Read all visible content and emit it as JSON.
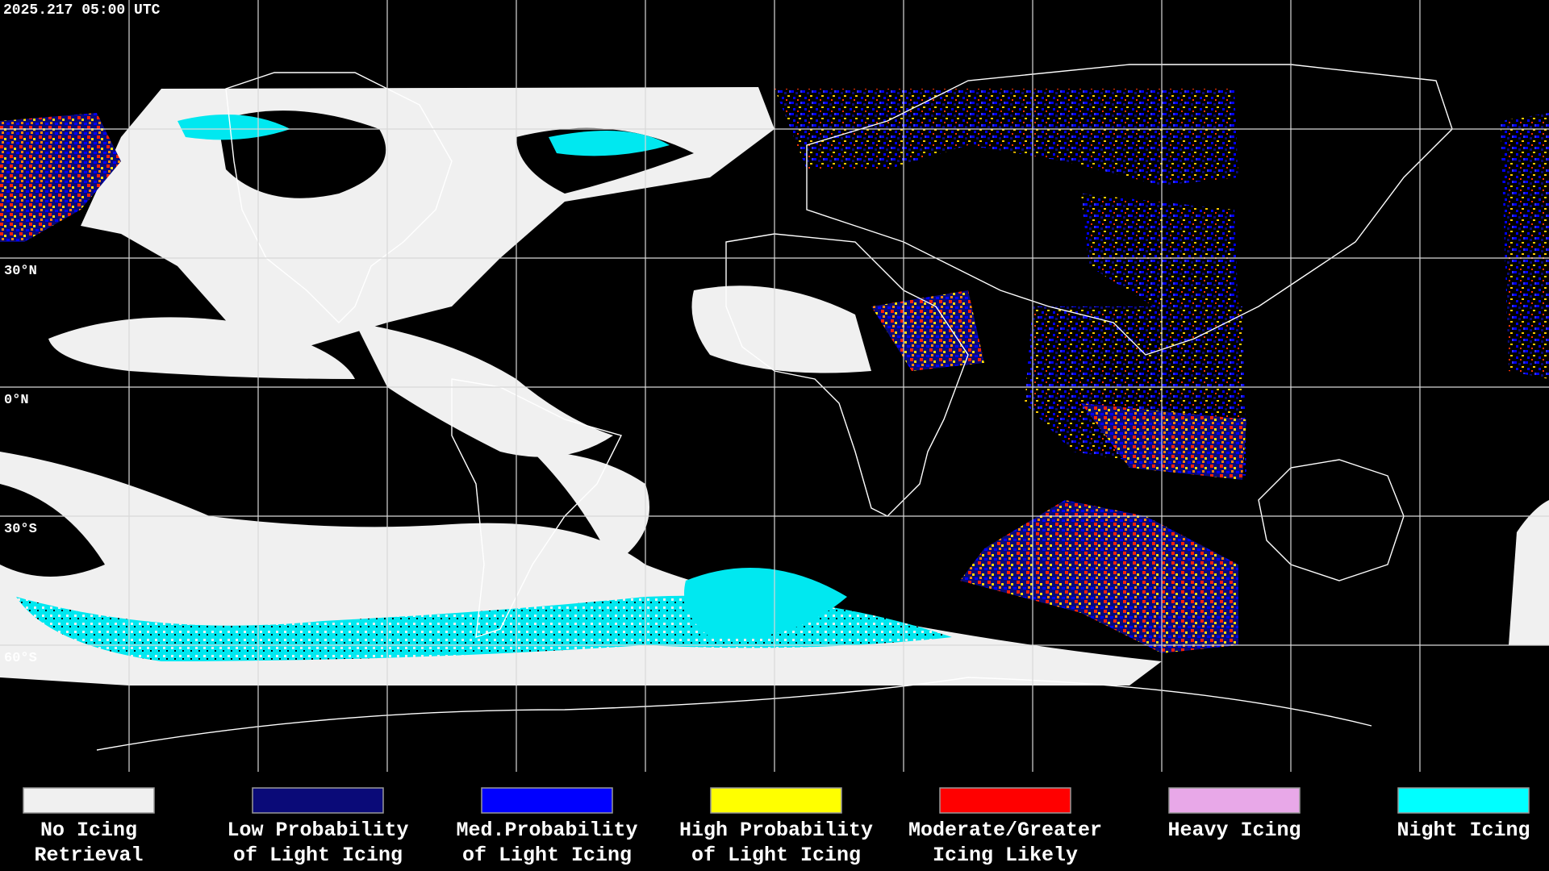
{
  "header": {
    "timestamp": "2025.217 05:00 UTC"
  },
  "map": {
    "latitude_labels": [
      "30°N",
      "0°N",
      "30°S",
      "60°S"
    ]
  },
  "legend": [
    {
      "color": "#f0f0f0",
      "label_lines": [
        "No Icing",
        "Retrieval"
      ]
    },
    {
      "color": "#0a0a78",
      "label_lines": [
        "Low Probability",
        "of Light Icing"
      ]
    },
    {
      "color": "#0000ff",
      "label_lines": [
        "Med.Probability",
        "of Light Icing"
      ]
    },
    {
      "color": "#ffff00",
      "label_lines": [
        "High Probability",
        "of Light Icing"
      ]
    },
    {
      "color": "#ff0000",
      "label_lines": [
        "Moderate/Greater",
        "Icing Likely"
      ]
    },
    {
      "color": "#e8a8e8",
      "label_lines": [
        "Heavy Icing"
      ]
    },
    {
      "color": "#00ffff",
      "label_lines": [
        "Night Icing"
      ]
    }
  ]
}
